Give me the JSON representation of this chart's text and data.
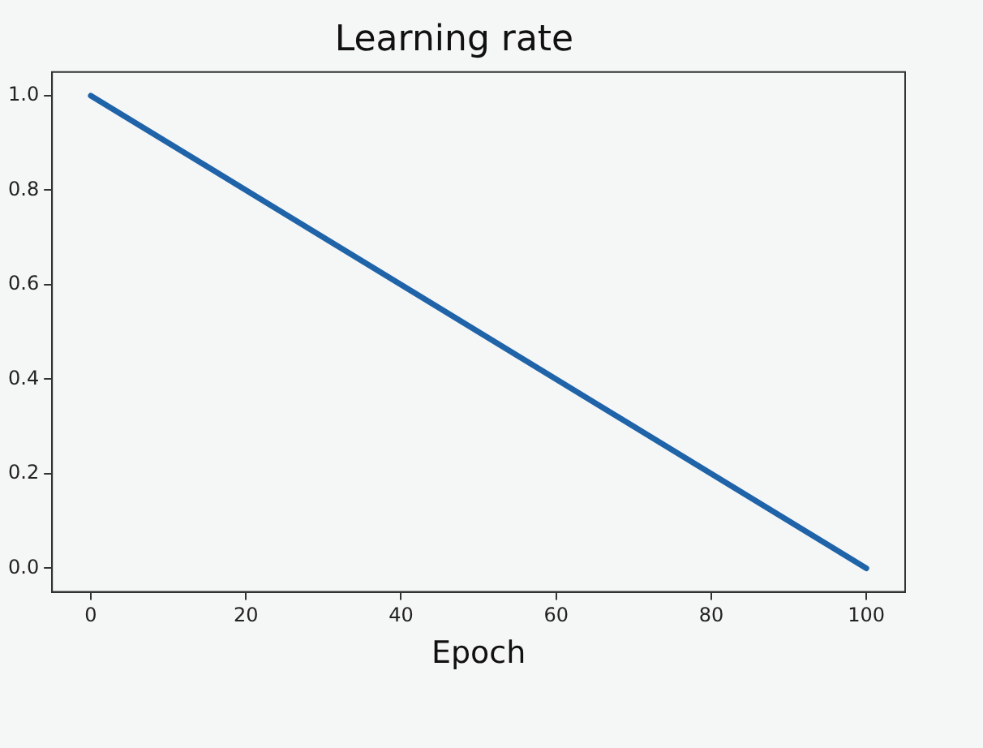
{
  "chart_data": {
    "type": "line",
    "title": "Learning rate",
    "xlabel": "Epoch",
    "x": [
      0,
      100
    ],
    "series": [
      {
        "color": "#1f63a8",
        "values": [
          1.0,
          0.0
        ]
      }
    ],
    "xlim": [
      -5,
      105
    ],
    "xticks": [
      0,
      20,
      40,
      60,
      80,
      100
    ],
    "ylim": [
      -0.05,
      1.05
    ],
    "yticks": [
      {
        "value": 0,
        "label": "0.0"
      },
      {
        "value": 0.2,
        "label": "0.2"
      },
      {
        "value": 0.4,
        "label": "0.4"
      },
      {
        "value": 0.6,
        "label": "0.6"
      },
      {
        "value": 0.8,
        "label": "0.8"
      },
      {
        "value": 1,
        "label": "1.0"
      }
    ],
    "grid": false,
    "legend": false,
    "marker": "none",
    "line_style": "solid"
  }
}
